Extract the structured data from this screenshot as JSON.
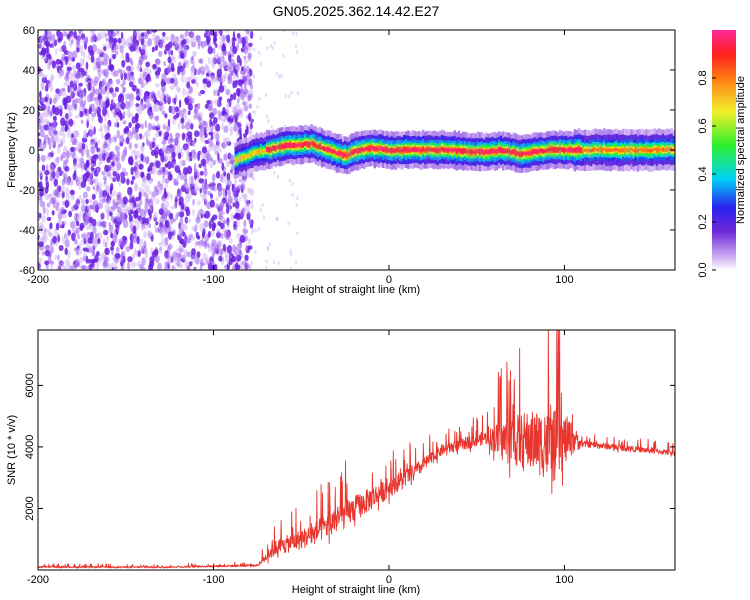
{
  "title": "GN05.2025.362.14.42.E27",
  "chart_data": [
    {
      "type": "heatmap",
      "description": "spectrogram",
      "xlabel": "Height of straight line (km)",
      "ylabel": "Frequency (Hz)",
      "xlim": [
        -200,
        163
      ],
      "ylim": [
        -60,
        60
      ],
      "xticks": [
        -200,
        -100,
        0,
        100
      ],
      "yticks": [
        -60,
        -40,
        -20,
        0,
        20,
        40,
        60
      ],
      "colorbar": {
        "label": "Normalized spectral amplitude",
        "range": [
          0.0,
          1.0
        ],
        "ticks": [
          0.0,
          0.2,
          0.4,
          0.6,
          0.8
        ],
        "colormap": "rainbow (purple-blue-cyan-green-yellow-red-magenta)"
      },
      "regions": [
        {
          "name": "noise",
          "x_range": [
            -200,
            -80
          ],
          "freq_range": [
            -60,
            60
          ],
          "amplitude": [
            0.0,
            0.25
          ],
          "color": "#7a2fe0"
        },
        {
          "name": "signal_band",
          "x_range": [
            -88,
            163
          ],
          "center_freq": [
            {
              "x": -88,
              "f": -5
            },
            {
              "x": -75,
              "f": -1
            },
            {
              "x": -60,
              "f": 2
            },
            {
              "x": -45,
              "f": 3
            },
            {
              "x": -35,
              "f": 0
            },
            {
              "x": -25,
              "f": -3
            },
            {
              "x": -18,
              "f": 0
            },
            {
              "x": -10,
              "f": 1
            },
            {
              "x": 0,
              "f": 0
            },
            {
              "x": 30,
              "f": 0
            },
            {
              "x": 55,
              "f": -1
            },
            {
              "x": 65,
              "f": 0
            },
            {
              "x": 75,
              "f": -2
            },
            {
              "x": 90,
              "f": 0
            },
            {
              "x": 100,
              "f": 0
            },
            {
              "x": 163,
              "f": 0
            }
          ],
          "peak_amplitude": 1.0
        }
      ]
    },
    {
      "type": "line",
      "xlabel": "Height of straight line (km)",
      "ylabel": "SNR (10 * v/v)",
      "xlim": [
        -200,
        163
      ],
      "ylim": [
        0,
        7800
      ],
      "xticks": [
        -200,
        -100,
        0,
        100
      ],
      "yticks": [
        2000,
        4000,
        6000
      ],
      "color": "#e8352e",
      "envelope": [
        {
          "x": -200,
          "mean": 100,
          "spread": 80
        },
        {
          "x": -130,
          "mean": 90,
          "spread": 70
        },
        {
          "x": -75,
          "mean": 150,
          "spread": 100
        },
        {
          "x": -65,
          "mean": 700,
          "spread": 700
        },
        {
          "x": -45,
          "mean": 1100,
          "spread": 1000
        },
        {
          "x": -25,
          "mean": 1800,
          "spread": 1300
        },
        {
          "x": -5,
          "mean": 2500,
          "spread": 1000
        },
        {
          "x": 15,
          "mean": 3200,
          "spread": 700
        },
        {
          "x": 30,
          "mean": 3900,
          "spread": 500
        },
        {
          "x": 55,
          "mean": 4300,
          "spread": 600
        },
        {
          "x": 65,
          "mean": 4200,
          "spread": 2000
        },
        {
          "x": 80,
          "mean": 4200,
          "spread": 2800
        },
        {
          "x": 95,
          "mean": 4000,
          "spread": 3400
        },
        {
          "x": 103,
          "mean": 4300,
          "spread": 1800
        },
        {
          "x": 110,
          "mean": 4100,
          "spread": 300
        },
        {
          "x": 163,
          "mean": 3800,
          "spread": 250
        }
      ]
    }
  ]
}
